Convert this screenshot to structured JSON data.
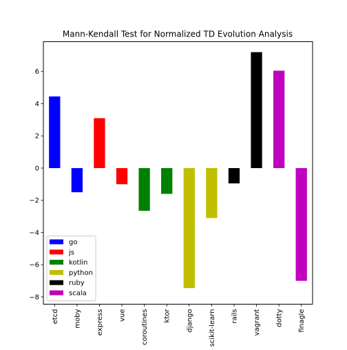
{
  "chart_data": {
    "type": "bar",
    "title": "Mann-Kendall Test for Normalized TD Evolution Analysis",
    "xlabel": "",
    "ylabel": "",
    "categories": [
      "etcd",
      "moby",
      "express",
      "vue",
      "coroutines",
      "ktor",
      "django",
      "scikit-learn",
      "rails",
      "vagrant",
      "dotty",
      "finagle"
    ],
    "values": [
      4.45,
      -1.5,
      3.1,
      -1.0,
      -2.65,
      -1.6,
      -7.45,
      -3.1,
      -0.95,
      7.2,
      6.05,
      -7.0
    ],
    "bar_groups": [
      "go",
      "go",
      "js",
      "js",
      "kotlin",
      "kotlin",
      "python",
      "python",
      "ruby",
      "ruby",
      "scala",
      "scala"
    ],
    "ylim": [
      -8.45,
      7.85
    ],
    "yticks": [
      -8,
      -6,
      -4,
      -2,
      0,
      2,
      4,
      6
    ],
    "ytick_labels": [
      "−8",
      "−6",
      "−4",
      "−2",
      "0",
      "2",
      "4",
      "6"
    ],
    "grid": false,
    "legend": {
      "placement": "lower-left",
      "entries": [
        {
          "label": "go",
          "color": "#0000ff"
        },
        {
          "label": "js",
          "color": "#ff0000"
        },
        {
          "label": "kotlin",
          "color": "#008000"
        },
        {
          "label": "python",
          "color": "#bfbf00"
        },
        {
          "label": "ruby",
          "color": "#000000"
        },
        {
          "label": "scala",
          "color": "#bf00bf"
        }
      ]
    }
  }
}
